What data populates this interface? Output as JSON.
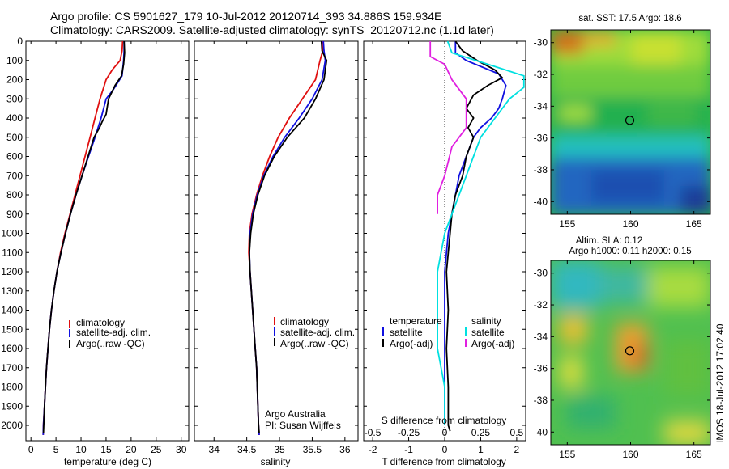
{
  "header": {
    "title_line1": "Argo profile: CS 5901627_179 10-Jul-2012 20120714_393 34.886S 159.934E",
    "title_line2": "Climatology: CARS2009. Satellite-adjusted climatology: synTS_20120712.nc (1.1d later)"
  },
  "colors": {
    "climatology": "#e01010",
    "satellite": "#1010e0",
    "argo": "#000000",
    "sat_salinity": "#00e0e0",
    "argo_salinity": "#e020e0"
  },
  "chart_data": [
    {
      "type": "line",
      "name": "temperature-panel",
      "xlabel": "temperature (deg C)",
      "ylabel": "",
      "xlim": [
        -1,
        31.5
      ],
      "ylim": [
        2080,
        0
      ],
      "xticks": [
        0,
        5,
        10,
        15,
        20,
        25,
        30
      ],
      "yticks": [
        0,
        100,
        200,
        300,
        400,
        500,
        600,
        700,
        800,
        900,
        1000,
        1100,
        1200,
        1300,
        1400,
        1500,
        1600,
        1700,
        1800,
        1900,
        2000
      ],
      "legend": [
        "climatology",
        "satellite-adj. clim.",
        "Argo(..raw -QC)"
      ],
      "legend_position": "lower-center",
      "series": [
        {
          "name": "climatology",
          "color": "#e01010",
          "points": [
            [
              18.3,
              0
            ],
            [
              18.2,
              50
            ],
            [
              17.8,
              100
            ],
            [
              16.2,
              150
            ],
            [
              15.0,
              200
            ],
            [
              13.8,
              300
            ],
            [
              12.8,
              400
            ],
            [
              11.8,
              500
            ],
            [
              10.8,
              600
            ],
            [
              9.8,
              700
            ],
            [
              8.8,
              800
            ],
            [
              7.8,
              900
            ],
            [
              6.8,
              1000
            ],
            [
              5.9,
              1100
            ],
            [
              5.2,
              1200
            ],
            [
              4.6,
              1300
            ],
            [
              4.1,
              1400
            ],
            [
              3.7,
              1500
            ],
            [
              3.4,
              1600
            ],
            [
              3.1,
              1700
            ],
            [
              2.9,
              1800
            ],
            [
              2.7,
              1900
            ],
            [
              2.5,
              2000
            ],
            [
              2.45,
              2050
            ]
          ]
        },
        {
          "name": "satellite-adj. clim.",
          "color": "#1010e0",
          "points": [
            [
              18.6,
              0
            ],
            [
              18.6,
              50
            ],
            [
              18.5,
              100
            ],
            [
              18.2,
              180
            ],
            [
              16.5,
              250
            ],
            [
              15.0,
              300
            ],
            [
              14.0,
              400
            ],
            [
              12.8,
              500
            ],
            [
              11.5,
              600
            ],
            [
              10.2,
              700
            ],
            [
              9.0,
              800
            ],
            [
              7.9,
              900
            ],
            [
              6.9,
              1000
            ],
            [
              6.0,
              1100
            ],
            [
              5.2,
              1200
            ],
            [
              4.6,
              1300
            ],
            [
              4.1,
              1400
            ],
            [
              3.7,
              1500
            ],
            [
              3.4,
              1600
            ],
            [
              3.1,
              1700
            ],
            [
              2.9,
              1800
            ],
            [
              2.7,
              1900
            ],
            [
              2.5,
              2000
            ],
            [
              2.45,
              2050
            ]
          ]
        },
        {
          "name": "Argo(..raw -QC)",
          "color": "#000000",
          "points": [
            [
              18.6,
              0
            ],
            [
              18.7,
              60
            ],
            [
              18.5,
              120
            ],
            [
              18.1,
              180
            ],
            [
              16.8,
              230
            ],
            [
              15.5,
              300
            ],
            [
              15.0,
              380
            ],
            [
              14.2,
              420
            ],
            [
              13.7,
              450
            ],
            [
              12.6,
              500
            ],
            [
              11.4,
              600
            ],
            [
              10.2,
              700
            ],
            [
              9.0,
              800
            ],
            [
              7.9,
              900
            ],
            [
              6.9,
              1000
            ],
            [
              6.0,
              1100
            ],
            [
              5.2,
              1200
            ],
            [
              4.6,
              1300
            ],
            [
              4.1,
              1400
            ],
            [
              3.7,
              1500
            ],
            [
              3.4,
              1600
            ],
            [
              3.1,
              1700
            ],
            [
              2.9,
              1800
            ],
            [
              2.7,
              1900
            ],
            [
              2.55,
              2000
            ],
            [
              2.5,
              2040
            ]
          ]
        }
      ]
    },
    {
      "type": "line",
      "name": "salinity-panel",
      "xlabel": "salinity",
      "ylabel": "",
      "xlim": [
        33.7,
        36.2
      ],
      "ylim": [
        2080,
        0
      ],
      "xticks": [
        34,
        34.5,
        35,
        35.5,
        36
      ],
      "legend": [
        "climatology",
        "satellite-adj. clim.",
        "Argo(..raw -QC)"
      ],
      "legend_position": "lower-right",
      "annotation": [
        "Argo Australia",
        "PI: Susan Wijffels"
      ],
      "series": [
        {
          "name": "climatology",
          "color": "#e01010",
          "points": [
            [
              35.65,
              0
            ],
            [
              35.66,
              50
            ],
            [
              35.62,
              100
            ],
            [
              35.55,
              200
            ],
            [
              35.35,
              300
            ],
            [
              35.15,
              400
            ],
            [
              34.98,
              500
            ],
            [
              34.85,
              600
            ],
            [
              34.74,
              700
            ],
            [
              34.65,
              800
            ],
            [
              34.58,
              900
            ],
            [
              34.54,
              1000
            ],
            [
              34.53,
              1100
            ],
            [
              34.55,
              1200
            ],
            [
              34.57,
              1300
            ],
            [
              34.59,
              1400
            ],
            [
              34.61,
              1500
            ],
            [
              34.63,
              1600
            ],
            [
              34.65,
              1700
            ],
            [
              34.66,
              1800
            ],
            [
              34.67,
              1900
            ],
            [
              34.68,
              2000
            ],
            [
              34.69,
              2050
            ]
          ]
        },
        {
          "name": "satellite-adj. clim.",
          "color": "#1010e0",
          "points": [
            [
              35.67,
              0
            ],
            [
              35.68,
              50
            ],
            [
              35.7,
              100
            ],
            [
              35.65,
              200
            ],
            [
              35.5,
              300
            ],
            [
              35.3,
              400
            ],
            [
              35.08,
              500
            ],
            [
              34.9,
              600
            ],
            [
              34.76,
              700
            ],
            [
              34.66,
              800
            ],
            [
              34.59,
              900
            ],
            [
              34.55,
              1000
            ],
            [
              34.54,
              1100
            ],
            [
              34.55,
              1200
            ],
            [
              34.57,
              1300
            ],
            [
              34.59,
              1400
            ],
            [
              34.61,
              1500
            ],
            [
              34.63,
              1600
            ],
            [
              34.65,
              1700
            ],
            [
              34.66,
              1800
            ],
            [
              34.67,
              1900
            ],
            [
              34.68,
              2000
            ],
            [
              34.69,
              2050
            ]
          ]
        },
        {
          "name": "Argo(..raw -QC)",
          "color": "#000000",
          "points": [
            [
              35.64,
              0
            ],
            [
              35.65,
              50
            ],
            [
              35.72,
              100
            ],
            [
              35.68,
              200
            ],
            [
              35.55,
              300
            ],
            [
              35.38,
              400
            ],
            [
              35.12,
              500
            ],
            [
              34.92,
              600
            ],
            [
              34.77,
              700
            ],
            [
              34.67,
              800
            ],
            [
              34.6,
              900
            ],
            [
              34.56,
              1000
            ],
            [
              34.54,
              1100
            ],
            [
              34.55,
              1200
            ],
            [
              34.57,
              1300
            ],
            [
              34.59,
              1400
            ],
            [
              34.61,
              1500
            ],
            [
              34.63,
              1600
            ],
            [
              34.65,
              1700
            ],
            [
              34.66,
              1800
            ],
            [
              34.67,
              1900
            ],
            [
              34.68,
              2000
            ],
            [
              34.69,
              2040
            ]
          ]
        }
      ]
    },
    {
      "type": "line",
      "name": "difference-panel",
      "xlabel": "T difference from climatology",
      "xlabel_top": "S difference from climatology",
      "xlim": [
        -2.25,
        2.25
      ],
      "ylim": [
        2080,
        0
      ],
      "xticks": [
        -2,
        -1,
        0,
        1,
        2
      ],
      "xticks_s": [
        -0.5,
        -0.25,
        0,
        0.25,
        0.5
      ],
      "legend_temperature_title": "temperature",
      "legend_salinity_title": "salinity",
      "legend": [
        "satellite",
        "Argo(-adj)",
        "satellite",
        "Argo(-adj)"
      ],
      "series": [
        {
          "name": "satellite",
          "group": "temperature",
          "color": "#1010e0",
          "points": [
            [
              0.3,
              0
            ],
            [
              0.3,
              60
            ],
            [
              0.6,
              100
            ],
            [
              1.5,
              170
            ],
            [
              1.7,
              230
            ],
            [
              1.6,
              300
            ],
            [
              1.5,
              350
            ],
            [
              1.3,
              400
            ],
            [
              1.0,
              450
            ],
            [
              0.8,
              500
            ],
            [
              0.6,
              600
            ],
            [
              0.4,
              700
            ],
            [
              0.3,
              800
            ],
            [
              0.2,
              900
            ],
            [
              0.1,
              1000
            ],
            [
              0.05,
              1100
            ],
            [
              0.0,
              1200
            ],
            [
              0.0,
              1400
            ],
            [
              0.0,
              1600
            ],
            [
              0.0,
              1800
            ],
            [
              0.0,
              2000
            ]
          ]
        },
        {
          "name": "Argo(-adj)",
          "group": "temperature",
          "color": "#000000",
          "points": [
            [
              0.3,
              0
            ],
            [
              0.5,
              50
            ],
            [
              0.9,
              100
            ],
            [
              1.4,
              150
            ],
            [
              1.6,
              190
            ],
            [
              1.2,
              230
            ],
            [
              0.8,
              280
            ],
            [
              0.6,
              350
            ],
            [
              0.8,
              400
            ],
            [
              0.65,
              450
            ],
            [
              0.8,
              500
            ],
            [
              0.6,
              600
            ],
            [
              0.5,
              700
            ],
            [
              0.3,
              800
            ],
            [
              0.2,
              900
            ],
            [
              0.15,
              1000
            ],
            [
              0.1,
              1100
            ],
            [
              0.05,
              1200
            ],
            [
              0.1,
              1400
            ],
            [
              0.05,
              1600
            ],
            [
              0.1,
              1800
            ],
            [
              0.1,
              2000
            ],
            [
              0.15,
              2030
            ]
          ]
        },
        {
          "name": "satellite",
          "group": "salinity",
          "color": "#00e0e0",
          "points": [
            [
              0.02,
              0
            ],
            [
              0.05,
              60
            ],
            [
              0.3,
              120
            ],
            [
              0.55,
              180
            ],
            [
              0.55,
              240
            ],
            [
              0.45,
              300
            ],
            [
              0.35,
              400
            ],
            [
              0.25,
              500
            ],
            [
              0.15,
              700
            ],
            [
              0.05,
              900
            ],
            [
              0.0,
              1000
            ],
            [
              -0.05,
              1200
            ],
            [
              -0.05,
              1400
            ],
            [
              -0.05,
              1600
            ],
            [
              0.0,
              1800
            ],
            [
              0.0,
              2000
            ]
          ]
        },
        {
          "name": "Argo(-adj)",
          "group": "salinity",
          "color": "#e020e0",
          "points": [
            [
              -0.1,
              0
            ],
            [
              -0.1,
              80
            ],
            [
              0.0,
              120
            ],
            [
              0.05,
              200
            ],
            [
              0.15,
              300
            ],
            [
              0.15,
              450
            ],
            [
              0.05,
              550
            ],
            [
              0.0,
              700
            ],
            [
              -0.05,
              800
            ],
            [
              -0.05,
              900
            ]
          ]
        }
      ]
    }
  ],
  "maps": [
    {
      "title": "sat. SST: 17.5 Argo: 18.6",
      "xticks": [
        155,
        160,
        165
      ],
      "yticks": [
        -30,
        -32,
        -34,
        -36,
        -38,
        -40
      ],
      "float_position": [
        159.934,
        -34.886
      ]
    },
    {
      "title_line1": "Altim. SLA: 0.12",
      "title_line2": "Argo h1000: 0.11 h2000: 0.15",
      "xticks": [
        155,
        160,
        165
      ],
      "yticks": [
        -30,
        -32,
        -34,
        -36,
        -38,
        -40
      ],
      "float_position": [
        159.934,
        -34.886
      ]
    }
  ],
  "footer": {
    "imos": "IMOS 18-Jul-2012 17:02:40"
  }
}
